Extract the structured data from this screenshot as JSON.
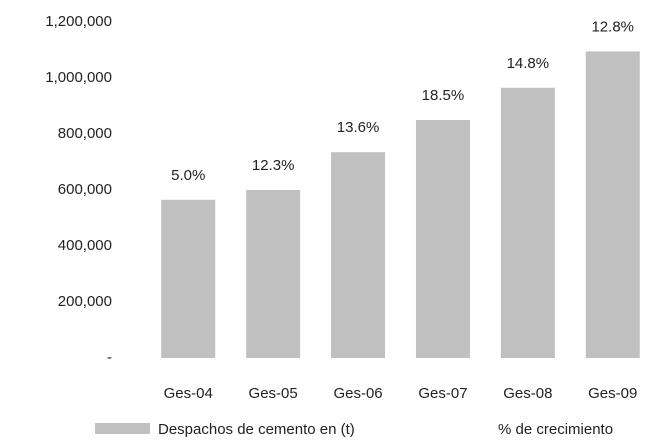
{
  "chart_data": {
    "type": "bar",
    "categories": [
      "Ges-04",
      "Ges-05",
      "Ges-06",
      "Ges-07",
      "Ges-08",
      "Ges-09"
    ],
    "series": [
      {
        "name": "Despachos de cemento en (t)",
        "color": "#c0c0c0",
        "values": [
          565000,
          600000,
          735000,
          850000,
          965000,
          1095000
        ]
      },
      {
        "name": "% de crecimiento",
        "values": [
          5.0,
          12.3,
          13.6,
          18.5,
          14.8,
          12.8
        ],
        "value_labels": [
          "5.0%",
          "12.3%",
          "13.6%",
          "18.5%",
          "14.8%",
          "12.8%"
        ]
      }
    ],
    "ylim": [
      0,
      1200000
    ],
    "yticks": [
      {
        "value": 0,
        "label": "-"
      },
      {
        "value": 200000,
        "label": "200,000"
      },
      {
        "value": 400000,
        "label": "400,000"
      },
      {
        "value": 600000,
        "label": "600,000"
      },
      {
        "value": 800000,
        "label": "800,000"
      },
      {
        "value": 1000000,
        "label": "1,000,000"
      },
      {
        "value": 1200000,
        "label": "1,200,000"
      }
    ],
    "grid": false
  }
}
